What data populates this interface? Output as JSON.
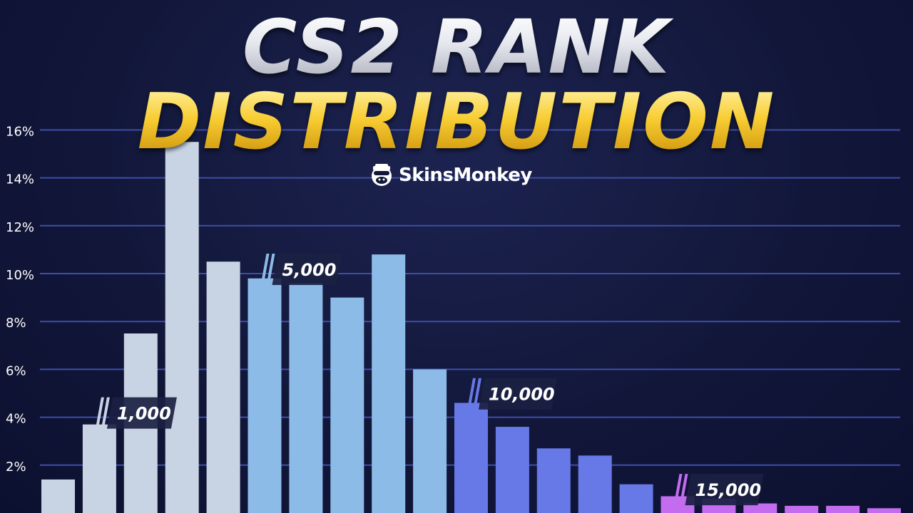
{
  "header": {
    "title_line1": "CS2 RANK",
    "title_line2": "DISTRIBUTION",
    "brand_name": "SkinsMonkey"
  },
  "chart_data": {
    "type": "bar",
    "y_ticks": [
      "2%",
      "4%",
      "6%",
      "8%",
      "10%",
      "12%",
      "14%",
      "16%"
    ],
    "ylim": [
      0,
      16
    ],
    "grid": true,
    "values": [
      1.4,
      3.7,
      7.5,
      15.5,
      10.5,
      9.8,
      9.6,
      9.0,
      10.8,
      6.0,
      4.6,
      3.6,
      2.7,
      2.4,
      1.2,
      0.7,
      0.6,
      0.4,
      0.3,
      0.3,
      0.2
    ],
    "tier_colors": [
      "#c8d3e3",
      "#8dbbe8",
      "#6679e6",
      "#c36cef"
    ],
    "bar_tiers": [
      0,
      0,
      0,
      0,
      0,
      1,
      1,
      1,
      1,
      1,
      2,
      2,
      2,
      2,
      2,
      3,
      3,
      3,
      3,
      3,
      3
    ],
    "annotations": [
      {
        "label": "1,000",
        "bar_index": 1,
        "value": 4.0
      },
      {
        "label": "5,000",
        "bar_index": 5,
        "value": 10.0
      },
      {
        "label": "10,000",
        "bar_index": 10,
        "value": 4.8
      },
      {
        "label": "15,000",
        "bar_index": 15,
        "value": 0.8
      }
    ]
  }
}
